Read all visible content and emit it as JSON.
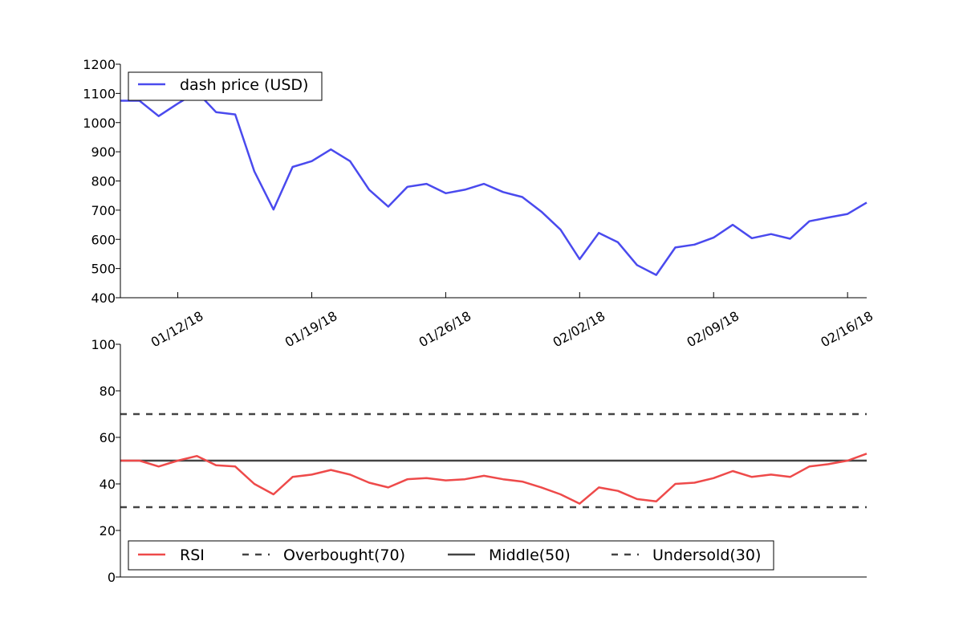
{
  "chart_data": [
    {
      "type": "line",
      "title": "",
      "xlabel": "",
      "ylabel": "",
      "x_start_date": "2018-01-09",
      "x_tick_labels": [
        "01/12/18",
        "01/19/18",
        "01/26/18",
        "02/02/18",
        "02/09/18",
        "02/16/18"
      ],
      "ylim": [
        400,
        1200
      ],
      "y_ticks": [
        400,
        500,
        600,
        700,
        800,
        900,
        1000,
        1100,
        1200
      ],
      "legend_position": "top-left",
      "series": [
        {
          "name": "dash price (USD)",
          "color": "#4a4aee",
          "values": [
            1075,
            1075,
            1022,
            1065,
            1105,
            1036,
            1028,
            833,
            702,
            848,
            868,
            908,
            868,
            770,
            712,
            780,
            790,
            758,
            770,
            790,
            762,
            745,
            695,
            633,
            532,
            622,
            590,
            512,
            478,
            572,
            582,
            606,
            650,
            604,
            618,
            602,
            662,
            675,
            687,
            726
          ]
        }
      ]
    },
    {
      "type": "line",
      "title": "",
      "xlabel": "",
      "ylabel": "",
      "ylim": [
        0,
        100
      ],
      "y_ticks": [
        0,
        20,
        40,
        60,
        80,
        100
      ],
      "legend_position": "bottom-left",
      "series": [
        {
          "name": "RSI",
          "color": "#ee4a4a",
          "style": "solid",
          "values": [
            50,
            50,
            47.5,
            50,
            52,
            48,
            47.5,
            40,
            35.5,
            43,
            44,
            46,
            44,
            40.5,
            38.5,
            42,
            42.5,
            41.5,
            42,
            43.5,
            42,
            41,
            38.5,
            35.5,
            31.5,
            38.5,
            37,
            33.5,
            32.5,
            40,
            40.5,
            42.5,
            45.5,
            43,
            44,
            43,
            47.5,
            48.5,
            50,
            53
          ]
        },
        {
          "name": "Overbought(70)",
          "color": "#444444",
          "style": "dashed",
          "constant": 70
        },
        {
          "name": "Middle(50)",
          "color": "#444444",
          "style": "solid",
          "constant": 50
        },
        {
          "name": "Undersold(30)",
          "color": "#444444",
          "style": "dashed",
          "constant": 30
        }
      ]
    }
  ]
}
